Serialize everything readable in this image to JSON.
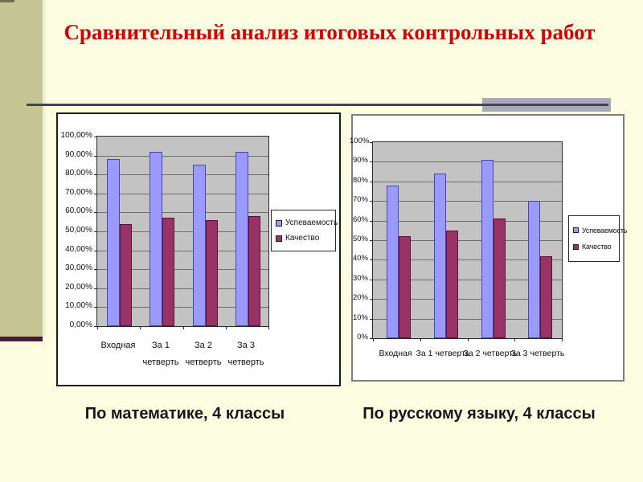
{
  "slide": {
    "title": "Сравнительный анализ итоговых контрольных работ",
    "palette": {
      "background": "#fdfde2",
      "title_text": "#cc0606",
      "side_band": "#c5c694",
      "band_accent_bar": "#451c3c",
      "title_rule": "#44444e",
      "title_rule_endcap": "#a9a9b6",
      "series_uspevaemost": "#9999ff",
      "series_kachestvo": "#993366"
    }
  },
  "chart_data": [
    {
      "type": "bar",
      "title": "По математике, 4 классы",
      "categories": [
        "Входная",
        "За 1 четверть",
        "За 2 четверть",
        "За 3 четверть"
      ],
      "series": [
        {
          "name": "Успеваемость",
          "color": "#9999ff",
          "values": [
            88,
            92,
            85,
            92
          ]
        },
        {
          "name": "Качество",
          "color": "#993366",
          "values": [
            54,
            57,
            56,
            58
          ]
        }
      ],
      "value_unit": "%",
      "ylim": [
        0,
        100
      ],
      "y_tick_labels": [
        "0,00%",
        "10,00%",
        "20,00%",
        "30,00%",
        "40,00%",
        "50,00%",
        "60,00%",
        "70,00%",
        "80,00%",
        "90,00%",
        "100,00%"
      ],
      "grid": true,
      "legend_position": "right",
      "plot_bg": "#c3c3c3"
    },
    {
      "type": "bar",
      "title": "По русскому языку, 4 классы",
      "categories": [
        "Входная",
        "За 1 четверть",
        "За 2 четверть",
        "За 3 четверть"
      ],
      "series": [
        {
          "name": "Успеваемость",
          "color": "#9999ff",
          "values": [
            78,
            84,
            91,
            70
          ]
        },
        {
          "name": "Качество",
          "color": "#993366",
          "values": [
            52,
            55,
            61,
            42
          ]
        }
      ],
      "value_unit": "%",
      "ylim": [
        0,
        100
      ],
      "y_tick_labels": [
        "0%",
        "10%",
        "20%",
        "30%",
        "40%",
        "50%",
        "60%",
        "70%",
        "80%",
        "90%",
        "100%"
      ],
      "grid": true,
      "legend_position": "right",
      "plot_bg": "#c3c3c3"
    }
  ]
}
